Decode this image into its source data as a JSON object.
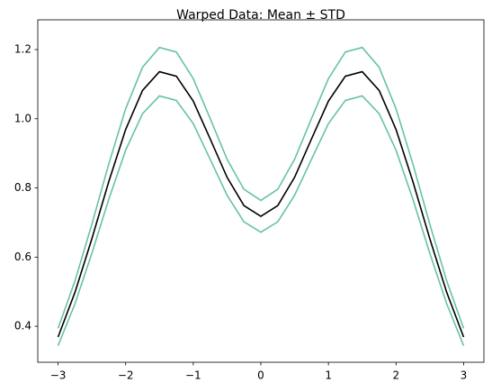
{
  "chart_data": {
    "type": "line",
    "title": "Warped Data: Mean ± STD",
    "x": [
      -3,
      -2.75,
      -2.5,
      -2.25,
      -2,
      -1.75,
      -1.5,
      -1.25,
      -1,
      -0.75,
      -0.5,
      -0.25,
      0,
      0.25,
      0.5,
      0.75,
      1,
      1.25,
      1.5,
      1.75,
      2,
      2.25,
      2.5,
      2.75,
      3
    ],
    "series": [
      {
        "color": "#66c2a5",
        "values": [
          0.394,
          0.531,
          0.695,
          0.869,
          1.029,
          1.149,
          1.206,
          1.193,
          1.116,
          1.001,
          0.883,
          0.796,
          0.764,
          0.796,
          0.883,
          1.001,
          1.116,
          1.193,
          1.206,
          1.149,
          1.029,
          0.869,
          0.695,
          0.531,
          0.394
        ]
      },
      {
        "color": "#66c2a5",
        "values": [
          0.344,
          0.465,
          0.611,
          0.767,
          0.909,
          1.015,
          1.066,
          1.053,
          0.986,
          0.883,
          0.779,
          0.702,
          0.672,
          0.702,
          0.779,
          0.883,
          0.986,
          1.053,
          1.066,
          1.015,
          0.909,
          0.767,
          0.611,
          0.465,
          0.344
        ]
      },
      {
        "color": "#000000",
        "values": [
          0.369,
          0.498,
          0.653,
          0.818,
          0.969,
          1.082,
          1.136,
          1.123,
          1.051,
          0.942,
          0.831,
          0.749,
          0.718,
          0.749,
          0.831,
          0.942,
          1.051,
          1.123,
          1.136,
          1.082,
          0.969,
          0.818,
          0.653,
          0.498,
          0.369
        ]
      }
    ],
    "xlim": [
      -3.3,
      3.3
    ],
    "xticks": [
      {
        "value": -3,
        "label": "−3"
      },
      {
        "value": -2,
        "label": "−2"
      },
      {
        "value": -1,
        "label": "−1"
      },
      0,
      1,
      2,
      3
    ],
    "ylim": [
      0.296,
      1.286
    ],
    "yticks": [
      0.4,
      0.6,
      0.8,
      {
        "value": 1,
        "label": "1.0"
      },
      1.2
    ],
    "grid": false
  }
}
